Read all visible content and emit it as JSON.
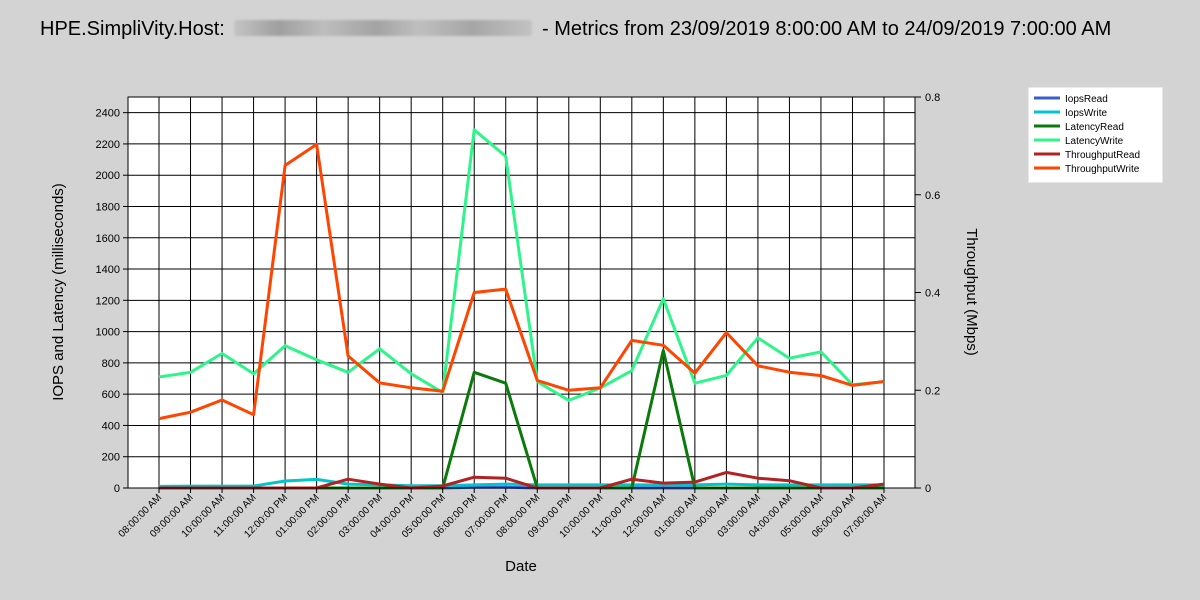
{
  "title": {
    "prefix": "HPE.SimpliVity.Host:",
    "redacted_host": "",
    "suffix": "- Metrics from 23/09/2019 8:00:00 AM to 24/09/2019 7:00:00 AM"
  },
  "chart_data": {
    "type": "line",
    "xlabel": "Date",
    "ylabel_left": "IOPS and Latency (milliseconds)",
    "ylabel_right": "Throughput (Mbps)",
    "ylim_left": [
      0,
      2500
    ],
    "yticks_left": [
      0,
      200,
      400,
      600,
      800,
      1000,
      1200,
      1400,
      1600,
      1800,
      2000,
      2200,
      2400
    ],
    "ylim_right": [
      0,
      0.8
    ],
    "yticks_right": [
      "0",
      "0.2",
      "0.4",
      "0.6",
      "0.8"
    ],
    "grid": true,
    "legend_position": "top-right",
    "categories": [
      "08:00:00 AM",
      "09:00:00 AM",
      "10:00:00 AM",
      "11:00:00 AM",
      "12:00:00 PM",
      "01:00:00 PM",
      "02:00:00 PM",
      "03:00:00 PM",
      "04:00:00 PM",
      "05:00:00 PM",
      "06:00:00 PM",
      "07:00:00 PM",
      "08:00:00 PM",
      "09:00:00 PM",
      "10:00:00 PM",
      "11:00:00 PM",
      "12:00:00 AM",
      "01:00:00 AM",
      "02:00:00 AM",
      "03:00:00 AM",
      "04:00:00 AM",
      "05:00:00 AM",
      "06:00:00 AM",
      "07:00:00 AM"
    ],
    "series": [
      {
        "name": "IopsRead",
        "axis": "left",
        "color": "#3a5fcd",
        "values": [
          0,
          0,
          0,
          0,
          0,
          0,
          0,
          0,
          0,
          0,
          5,
          5,
          0,
          0,
          0,
          0,
          0,
          0,
          0,
          0,
          0,
          0,
          0,
          0
        ]
      },
      {
        "name": "IopsWrite",
        "axis": "left",
        "color": "#00c5cd",
        "values": [
          10,
          12,
          12,
          12,
          45,
          55,
          25,
          20,
          15,
          15,
          20,
          25,
          20,
          20,
          20,
          20,
          20,
          20,
          25,
          20,
          20,
          20,
          20,
          20
        ]
      },
      {
        "name": "LatencyRead",
        "axis": "left",
        "color": "#0a7a0a",
        "values": [
          0,
          0,
          0,
          0,
          0,
          0,
          0,
          0,
          0,
          0,
          740,
          670,
          0,
          0,
          0,
          0,
          880,
          0,
          0,
          0,
          0,
          0,
          0,
          0
        ]
      },
      {
        "name": "LatencyWrite",
        "axis": "left",
        "color": "#2ef58a",
        "values": [
          710,
          740,
          860,
          730,
          910,
          820,
          740,
          890,
          730,
          610,
          2290,
          2120,
          680,
          560,
          640,
          750,
          1210,
          670,
          720,
          960,
          830,
          870,
          660,
          680
        ]
      },
      {
        "name": "ThroughputRead",
        "axis": "right",
        "color": "#b22222",
        "values": [
          0,
          0,
          0,
          0,
          0,
          0,
          0.018,
          0.008,
          0,
          0.004,
          0.022,
          0.02,
          0,
          0,
          0,
          0.018,
          0.01,
          0.012,
          0.032,
          0.02,
          0.015,
          0,
          0,
          0.008
        ]
      },
      {
        "name": "ThroughputWrite",
        "axis": "right",
        "color": "#ff4500",
        "values": [
          0.142,
          0.155,
          0.18,
          0.15,
          0.66,
          0.703,
          0.27,
          0.215,
          0.205,
          0.198,
          0.4,
          0.407,
          0.22,
          0.2,
          0.205,
          0.302,
          0.292,
          0.235,
          0.318,
          0.25,
          0.237,
          0.23,
          0.21,
          0.218
        ]
      }
    ]
  }
}
